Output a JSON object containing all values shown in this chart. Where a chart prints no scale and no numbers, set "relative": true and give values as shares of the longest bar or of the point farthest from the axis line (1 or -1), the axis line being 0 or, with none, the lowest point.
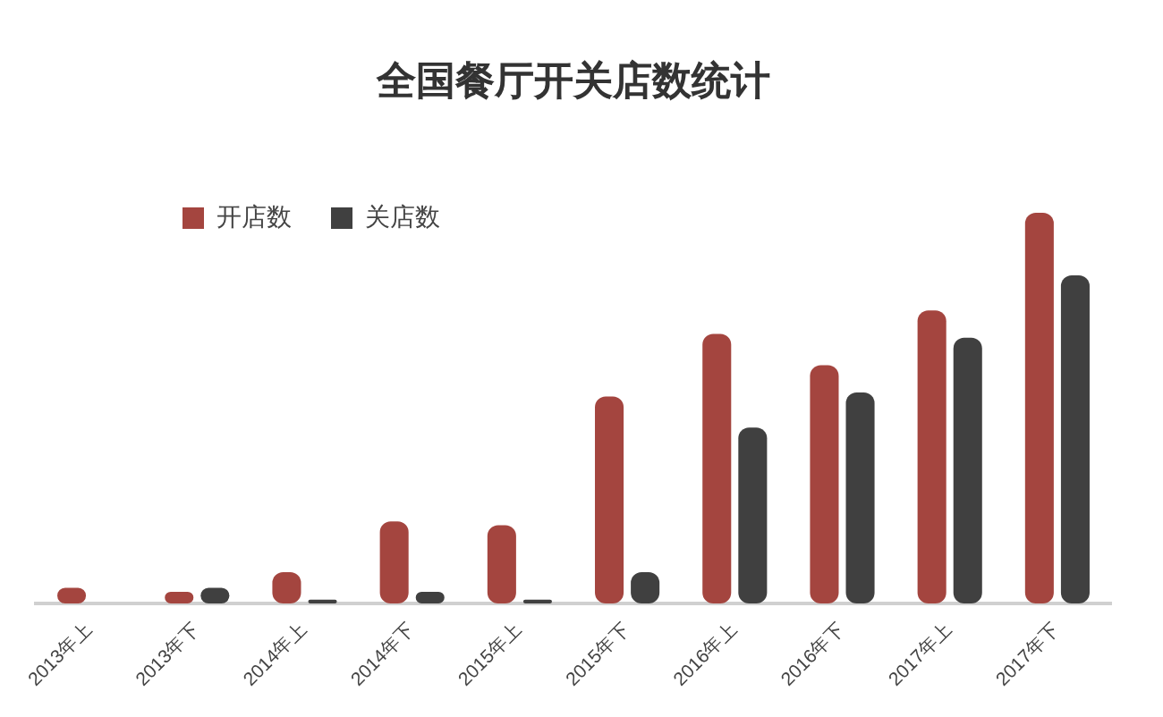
{
  "chart_data": {
    "type": "bar",
    "title": "全国餐厅开关店数统计",
    "categories": [
      "2013年上",
      "2013年下",
      "2014年上",
      "2014年下",
      "2015年上",
      "2015年下",
      "2016年上",
      "2016年下",
      "2017年上",
      "2017年下"
    ],
    "series": [
      {
        "name": "开店数",
        "color": "#a4453f",
        "values": [
          0.04,
          0.03,
          0.08,
          0.21,
          0.2,
          0.53,
          0.69,
          0.61,
          0.75,
          1
        ]
      },
      {
        "name": "关店数",
        "color": "#404040",
        "values": [
          null,
          0.04,
          0.01,
          0.03,
          0.01,
          0.08,
          0.45,
          0.54,
          0.68,
          0.84
        ]
      }
    ],
    "relative": true,
    "legend": "top left",
    "grid": false
  }
}
